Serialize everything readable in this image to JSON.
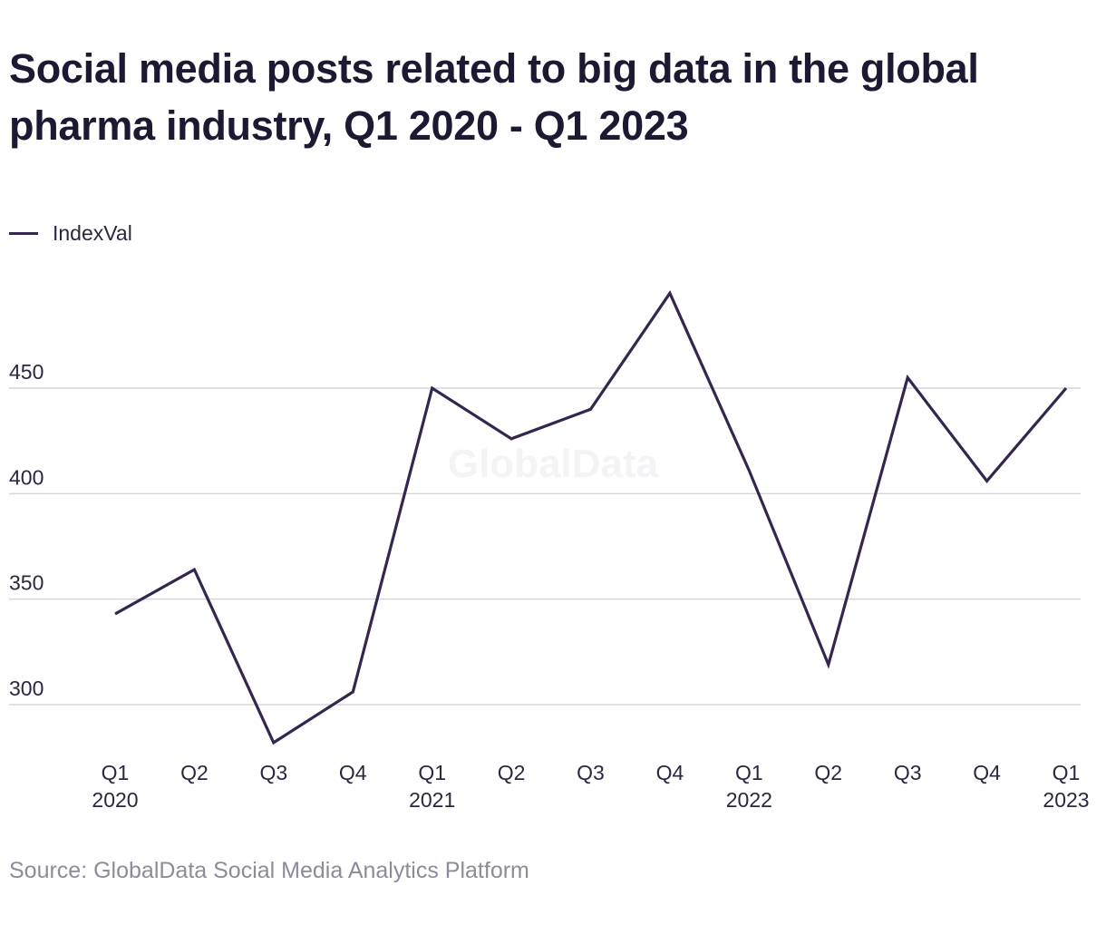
{
  "chart_data": {
    "type": "line",
    "title": "Social media posts related to big data in the global pharma industry, Q1 2020 - Q1 2023",
    "source": "Source: GlobalData Social Media Analytics Platform",
    "watermark": "GlobalData",
    "legend_position": "top-left",
    "grid": true,
    "categories": [
      {
        "quarter": "Q1",
        "year": "2020"
      },
      {
        "quarter": "Q2",
        "year": ""
      },
      {
        "quarter": "Q3",
        "year": ""
      },
      {
        "quarter": "Q4",
        "year": ""
      },
      {
        "quarter": "Q1",
        "year": "2021"
      },
      {
        "quarter": "Q2",
        "year": ""
      },
      {
        "quarter": "Q3",
        "year": ""
      },
      {
        "quarter": "Q4",
        "year": ""
      },
      {
        "quarter": "Q1",
        "year": "2022"
      },
      {
        "quarter": "Q2",
        "year": ""
      },
      {
        "quarter": "Q3",
        "year": ""
      },
      {
        "quarter": "Q4",
        "year": ""
      },
      {
        "quarter": "Q1",
        "year": "2023"
      }
    ],
    "series": [
      {
        "name": "IndexVal",
        "color": "#34264f",
        "values": [
          343,
          364,
          282,
          306,
          450,
          426,
          440,
          495,
          411,
          319,
          455,
          406,
          450
        ]
      }
    ],
    "yticks": [
      300,
      350,
      400,
      450
    ],
    "ylim": [
      282,
      495
    ]
  }
}
